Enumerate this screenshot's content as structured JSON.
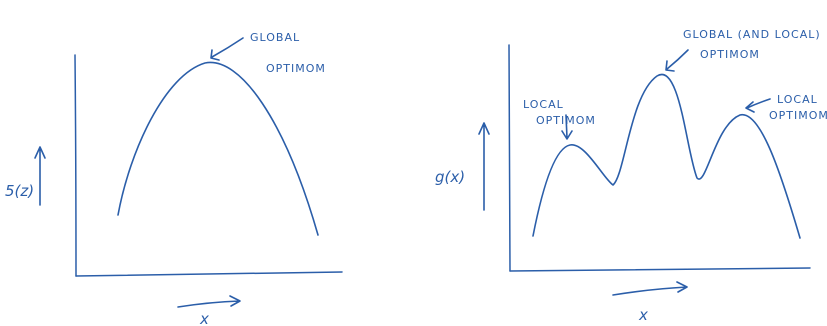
{
  "ink_color": "#2b5ea9",
  "panels": [
    {
      "function_label": "5(z)",
      "x_label": "x",
      "annotations": {
        "global_line1": "GLOBAL",
        "global_line2": "OPTIMOM"
      },
      "curve": "single peak",
      "arrow_icon": "hand-drawn-arrow-icon"
    },
    {
      "function_label": "g(x)",
      "x_label": "x",
      "annotations": {
        "local_left_line1": "LOCAL",
        "local_left_line2": "OPTIMOM",
        "global_line1": "GLOBAL (AND LOCAL)",
        "global_line2": "OPTIMOM",
        "local_right_line1": "LOCAL",
        "local_right_line2": "OPTIMOM"
      },
      "curve": "three peaks",
      "arrow_icon": "hand-drawn-arrow-icon"
    }
  ]
}
